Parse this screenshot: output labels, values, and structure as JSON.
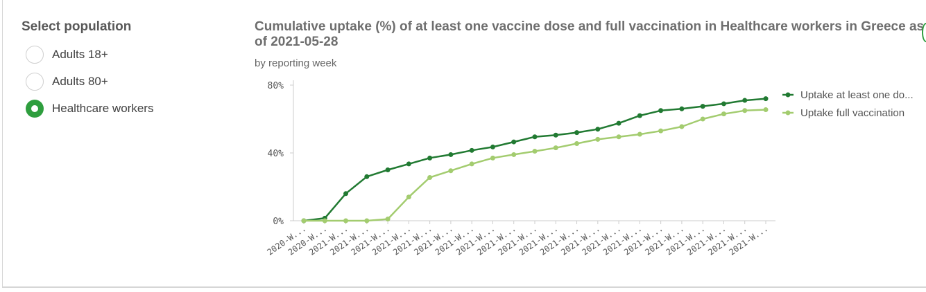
{
  "selector": {
    "title": "Select population",
    "options": [
      {
        "label": "Adults 18+",
        "selected": false
      },
      {
        "label": "Adults 80+",
        "selected": false
      },
      {
        "label": "Healthcare workers",
        "selected": true
      }
    ],
    "accent_color": "#2e9e3e"
  },
  "chart_data": {
    "type": "line",
    "title": "Cumulative uptake (%) of at least one vaccine dose and full vaccination in Healthcare workers in Greece as of 2021-05-28",
    "subtitle": "by reporting week",
    "xlabel": "",
    "ylabel": "",
    "categories": [
      "2020-W...",
      "2020-W...",
      "2021-W...",
      "2021-W...",
      "2021-W...",
      "2021-W...",
      "2021-W...",
      "2021-W...",
      "2021-W...",
      "2021-W...",
      "2021-W...",
      "2021-W...",
      "2021-W...",
      "2021-W...",
      "2021-W...",
      "2021-W...",
      "2021-W...",
      "2021-W...",
      "2021-W...",
      "2021-W...",
      "2021-W...",
      "2021-W...",
      "2021-W..."
    ],
    "y_ticks": [
      "0%",
      "40%",
      "80%"
    ],
    "ylim": [
      0,
      80
    ],
    "series": [
      {
        "name": "Uptake at least one do...",
        "color": "#217a32",
        "values": [
          0,
          1.5,
          16,
          26,
          30,
          33.5,
          37,
          39,
          41.5,
          43.5,
          46.5,
          49.5,
          50.5,
          52,
          54,
          57.5,
          62,
          65,
          66,
          67.5,
          69,
          71,
          72
        ]
      },
      {
        "name": "Uptake full vaccination",
        "color": "#a3cc6f",
        "values": [
          0,
          0,
          0,
          0,
          1,
          14,
          25.5,
          29.5,
          33.5,
          37,
          39,
          41,
          43,
          45.5,
          48,
          49.5,
          51,
          53,
          55.5,
          60,
          63,
          65,
          65.5
        ]
      }
    ],
    "legend_position": "right",
    "grid": false
  }
}
